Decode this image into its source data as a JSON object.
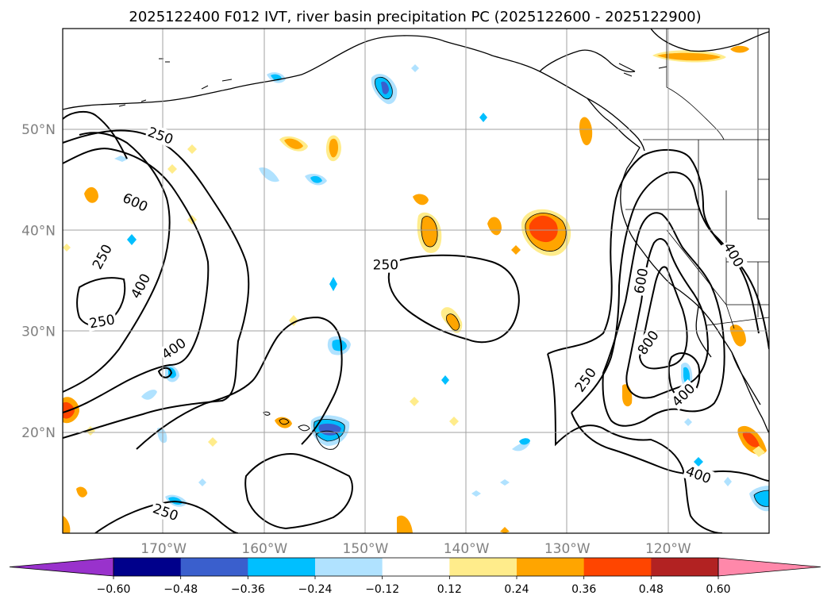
{
  "title": "2025122400 F012 IVT, river basin precipitation PC (2025122600 - 2025122900)",
  "map": {
    "projection": "PlateCarree",
    "lon_range": [
      -180,
      -110
    ],
    "lat_range": [
      10,
      60
    ],
    "lat_ticks": [
      {
        "value": 20,
        "label": "20°N"
      },
      {
        "value": 30,
        "label": "30°N"
      },
      {
        "value": 40,
        "label": "40°N"
      },
      {
        "value": 50,
        "label": "50°N"
      }
    ],
    "lon_ticks": [
      {
        "value": -170,
        "label": "170°W"
      },
      {
        "value": -160,
        "label": "160°W"
      },
      {
        "value": -150,
        "label": "150°W"
      },
      {
        "value": -140,
        "label": "140°W"
      },
      {
        "value": -130,
        "label": "130°W"
      },
      {
        "value": -120,
        "label": "120°W"
      }
    ],
    "ivt_contour_labels": [
      {
        "text": "250",
        "lon": -170.3,
        "lat": 49.4,
        "angle": 20
      },
      {
        "text": "600",
        "lon": -172.8,
        "lat": 42.8,
        "angle": 25
      },
      {
        "text": "250",
        "lon": -176.1,
        "lat": 37.4,
        "angle": -62
      },
      {
        "text": "400",
        "lon": -172.3,
        "lat": 34.5,
        "angle": -62
      },
      {
        "text": "250",
        "lon": -176.1,
        "lat": 31.0,
        "angle": -10
      },
      {
        "text": "400",
        "lon": -169.0,
        "lat": 28.3,
        "angle": -35
      },
      {
        "text": "250",
        "lon": -148.0,
        "lat": 36.6,
        "angle": 0
      },
      {
        "text": "250",
        "lon": -169.8,
        "lat": 12.1,
        "angle": 20
      },
      {
        "text": "250",
        "lon": -128.2,
        "lat": 25.2,
        "angle": -55
      },
      {
        "text": "600",
        "lon": -122.7,
        "lat": 35.0,
        "angle": -80
      },
      {
        "text": "800",
        "lon": -122.0,
        "lat": 28.9,
        "angle": -55
      },
      {
        "text": "400",
        "lon": -118.5,
        "lat": 23.7,
        "angle": -45
      },
      {
        "text": "400",
        "lon": -113.5,
        "lat": 37.6,
        "angle": 60
      },
      {
        "text": "400",
        "lon": -117.0,
        "lat": 15.8,
        "angle": 20
      }
    ]
  },
  "colorbar": {
    "boundaries": [
      -0.6,
      -0.48,
      -0.36,
      -0.24,
      -0.12,
      0.12,
      0.24,
      0.36,
      0.48,
      0.6
    ],
    "tick_labels": [
      "−0.60",
      "−0.48",
      "−0.36",
      "−0.24",
      "−0.12",
      "0.12",
      "0.24",
      "0.36",
      "0.48",
      "0.60"
    ],
    "under_color": "#9932cc",
    "over_color": "#ff88aa",
    "colors": [
      "#00008b",
      "#3a5fcd",
      "#00bfff",
      "#b0e2ff",
      "#ffffff",
      "#ffec8b",
      "#ffa500",
      "#ff4500",
      "#b22222"
    ]
  }
}
